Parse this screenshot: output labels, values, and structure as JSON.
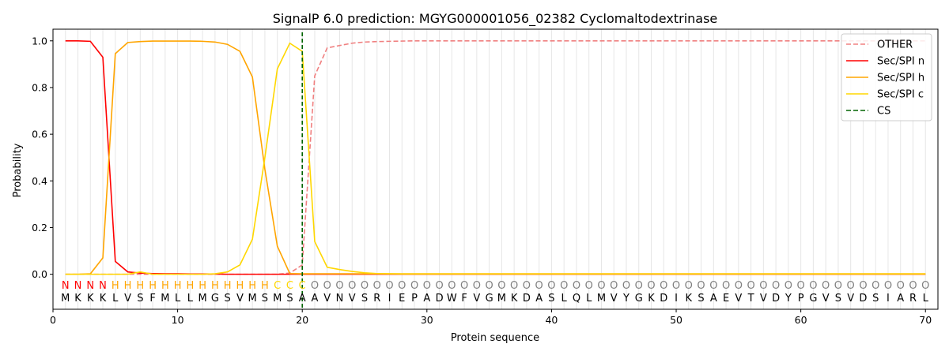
{
  "chart_data": {
    "type": "line",
    "title": "SignalP 6.0 prediction: MGYG000001056_02382 Cyclomaltodextrinase",
    "xlabel": "Protein sequence",
    "ylabel": "Probability",
    "xlim": [
      0,
      71
    ],
    "ylim": [
      -0.15,
      1.05
    ],
    "xticks": [
      0,
      10,
      20,
      30,
      40,
      50,
      60,
      70
    ],
    "yticks": [
      0.0,
      0.2,
      0.4,
      0.6,
      0.8,
      1.0
    ],
    "xtick_labels": [
      "0",
      "10",
      "20",
      "30",
      "40",
      "50",
      "60",
      "70"
    ],
    "ytick_labels": [
      "0.0",
      "0.2",
      "0.4",
      "0.6",
      "0.8",
      "1.0"
    ],
    "sequence": [
      "M",
      "K",
      "K",
      "K",
      "L",
      "V",
      "S",
      "F",
      "M",
      "L",
      "L",
      "M",
      "G",
      "S",
      "V",
      "M",
      "S",
      "M",
      "S",
      "A",
      "A",
      "V",
      "N",
      "V",
      "S",
      "R",
      "I",
      "E",
      "P",
      "A",
      "D",
      "W",
      "F",
      "V",
      "G",
      "M",
      "K",
      "D",
      "A",
      "S",
      "L",
      "Q",
      "L",
      "M",
      "V",
      "Y",
      "G",
      "K",
      "D",
      "I",
      "K",
      "S",
      "A",
      "E",
      "V",
      "T",
      "V",
      "D",
      "Y",
      "P",
      "G",
      "V",
      "S",
      "V",
      "D",
      "S",
      "I",
      "A",
      "R",
      "L"
    ],
    "labels": [
      "N",
      "N",
      "N",
      "N",
      "H",
      "H",
      "H",
      "H",
      "H",
      "H",
      "H",
      "H",
      "H",
      "H",
      "H",
      "H",
      "H",
      "C",
      "C",
      "C",
      "O",
      "O",
      "O",
      "O",
      "O",
      "O",
      "O",
      "O",
      "O",
      "O",
      "O",
      "O",
      "O",
      "O",
      "O",
      "O",
      "O",
      "O",
      "O",
      "O",
      "O",
      "O",
      "O",
      "O",
      "O",
      "O",
      "O",
      "O",
      "O",
      "O",
      "O",
      "O",
      "O",
      "O",
      "O",
      "O",
      "O",
      "O",
      "O",
      "O",
      "O",
      "O",
      "O",
      "O",
      "O",
      "O",
      "O",
      "O",
      "O",
      "O"
    ],
    "label_colors": {
      "N": "#ff0000",
      "H": "#ffa500",
      "C": "#ffd700",
      "O": "#808080"
    },
    "x": [
      1,
      2,
      3,
      4,
      5,
      6,
      7,
      8,
      9,
      10,
      11,
      12,
      13,
      14,
      15,
      16,
      17,
      18,
      19,
      20,
      21,
      22,
      23,
      24,
      25,
      26,
      27,
      28,
      29,
      30,
      31,
      32,
      33,
      34,
      35,
      36,
      37,
      38,
      39,
      40,
      41,
      42,
      43,
      44,
      45,
      46,
      47,
      48,
      49,
      50,
      51,
      52,
      53,
      54,
      55,
      56,
      57,
      58,
      59,
      60,
      61,
      62,
      63,
      64,
      65,
      66,
      67,
      68,
      69,
      70
    ],
    "series": [
      {
        "name": "OTHER",
        "color": "#f08080",
        "dash": true,
        "values": [
          0,
          0,
          0,
          0,
          0,
          0,
          0,
          0,
          0,
          0,
          0,
          0,
          0,
          0,
          0,
          0,
          0,
          0,
          0.005,
          0.04,
          0.85,
          0.97,
          0.98,
          0.99,
          0.995,
          0.997,
          0.998,
          0.999,
          1,
          1,
          1,
          1,
          1,
          1,
          1,
          1,
          1,
          1,
          1,
          1,
          1,
          1,
          1,
          1,
          1,
          1,
          1,
          1,
          1,
          1,
          1,
          1,
          1,
          1,
          1,
          1,
          1,
          1,
          1,
          1,
          1,
          1,
          1,
          1,
          1,
          1,
          1,
          1,
          1,
          1
        ]
      },
      {
        "name": "Sec/SPI n",
        "color": "#ff0000",
        "dash": false,
        "values": [
          1.0,
          1.0,
          0.998,
          0.93,
          0.055,
          0.01,
          0.005,
          0.003,
          0.002,
          0.002,
          0.001,
          0.001,
          0.001,
          0,
          0,
          0,
          0,
          0,
          0,
          0,
          0,
          0,
          0,
          0,
          0,
          0,
          0,
          0,
          0,
          0,
          0,
          0,
          0,
          0,
          0,
          0,
          0,
          0,
          0,
          0,
          0,
          0,
          0,
          0,
          0,
          0,
          0,
          0,
          0,
          0,
          0,
          0,
          0,
          0,
          0,
          0,
          0,
          0,
          0,
          0,
          0,
          0,
          0,
          0,
          0,
          0,
          0,
          0,
          0,
          0
        ]
      },
      {
        "name": "Sec/SPI h",
        "color": "#ffa500",
        "dash": false,
        "values": [
          0,
          0,
          0.002,
          0.07,
          0.945,
          0.993,
          0.997,
          0.999,
          0.999,
          0.999,
          0.999,
          0.998,
          0.995,
          0.985,
          0.955,
          0.845,
          0.45,
          0.12,
          0.003,
          0.002,
          0.002,
          0.002,
          0.002,
          0.002,
          0.002,
          0.002,
          0.002,
          0.002,
          0.002,
          0.002,
          0.002,
          0.002,
          0.002,
          0.002,
          0.002,
          0.002,
          0.002,
          0.002,
          0.002,
          0.002,
          0.002,
          0.002,
          0.002,
          0.002,
          0.002,
          0.002,
          0.002,
          0.002,
          0.002,
          0.002,
          0.002,
          0.002,
          0.002,
          0.002,
          0.002,
          0.002,
          0.002,
          0.002,
          0.002,
          0.002,
          0.002,
          0.002,
          0.002,
          0.002,
          0.002,
          0.002,
          0.002,
          0.002,
          0.002,
          0.002
        ]
      },
      {
        "name": "Sec/SPI c",
        "color": "#ffd700",
        "dash": false,
        "values": [
          0,
          0,
          0,
          0,
          0,
          0,
          0.01,
          0,
          0,
          0,
          0,
          0,
          0.002,
          0.01,
          0.04,
          0.15,
          0.5,
          0.88,
          0.99,
          0.955,
          0.14,
          0.03,
          0.02,
          0.012,
          0.006,
          0.003,
          0.002,
          0.001,
          0.001,
          0.001,
          0.001,
          0.001,
          0.001,
          0.001,
          0.001,
          0.001,
          0.001,
          0.001,
          0.001,
          0.001,
          0.001,
          0.001,
          0.001,
          0.001,
          0.001,
          0.001,
          0.001,
          0.001,
          0.001,
          0.001,
          0.001,
          0.001,
          0.001,
          0.001,
          0.001,
          0.001,
          0.001,
          0.001,
          0.001,
          0.001,
          0.001,
          0.001,
          0.001,
          0.001,
          0.001,
          0.001,
          0.001,
          0.001,
          0.001,
          0.001
        ]
      }
    ],
    "cs": {
      "name": "CS",
      "x": 20,
      "color": "#006400"
    },
    "legend_position": "upper right",
    "grid": "vertical lines at each residue"
  }
}
